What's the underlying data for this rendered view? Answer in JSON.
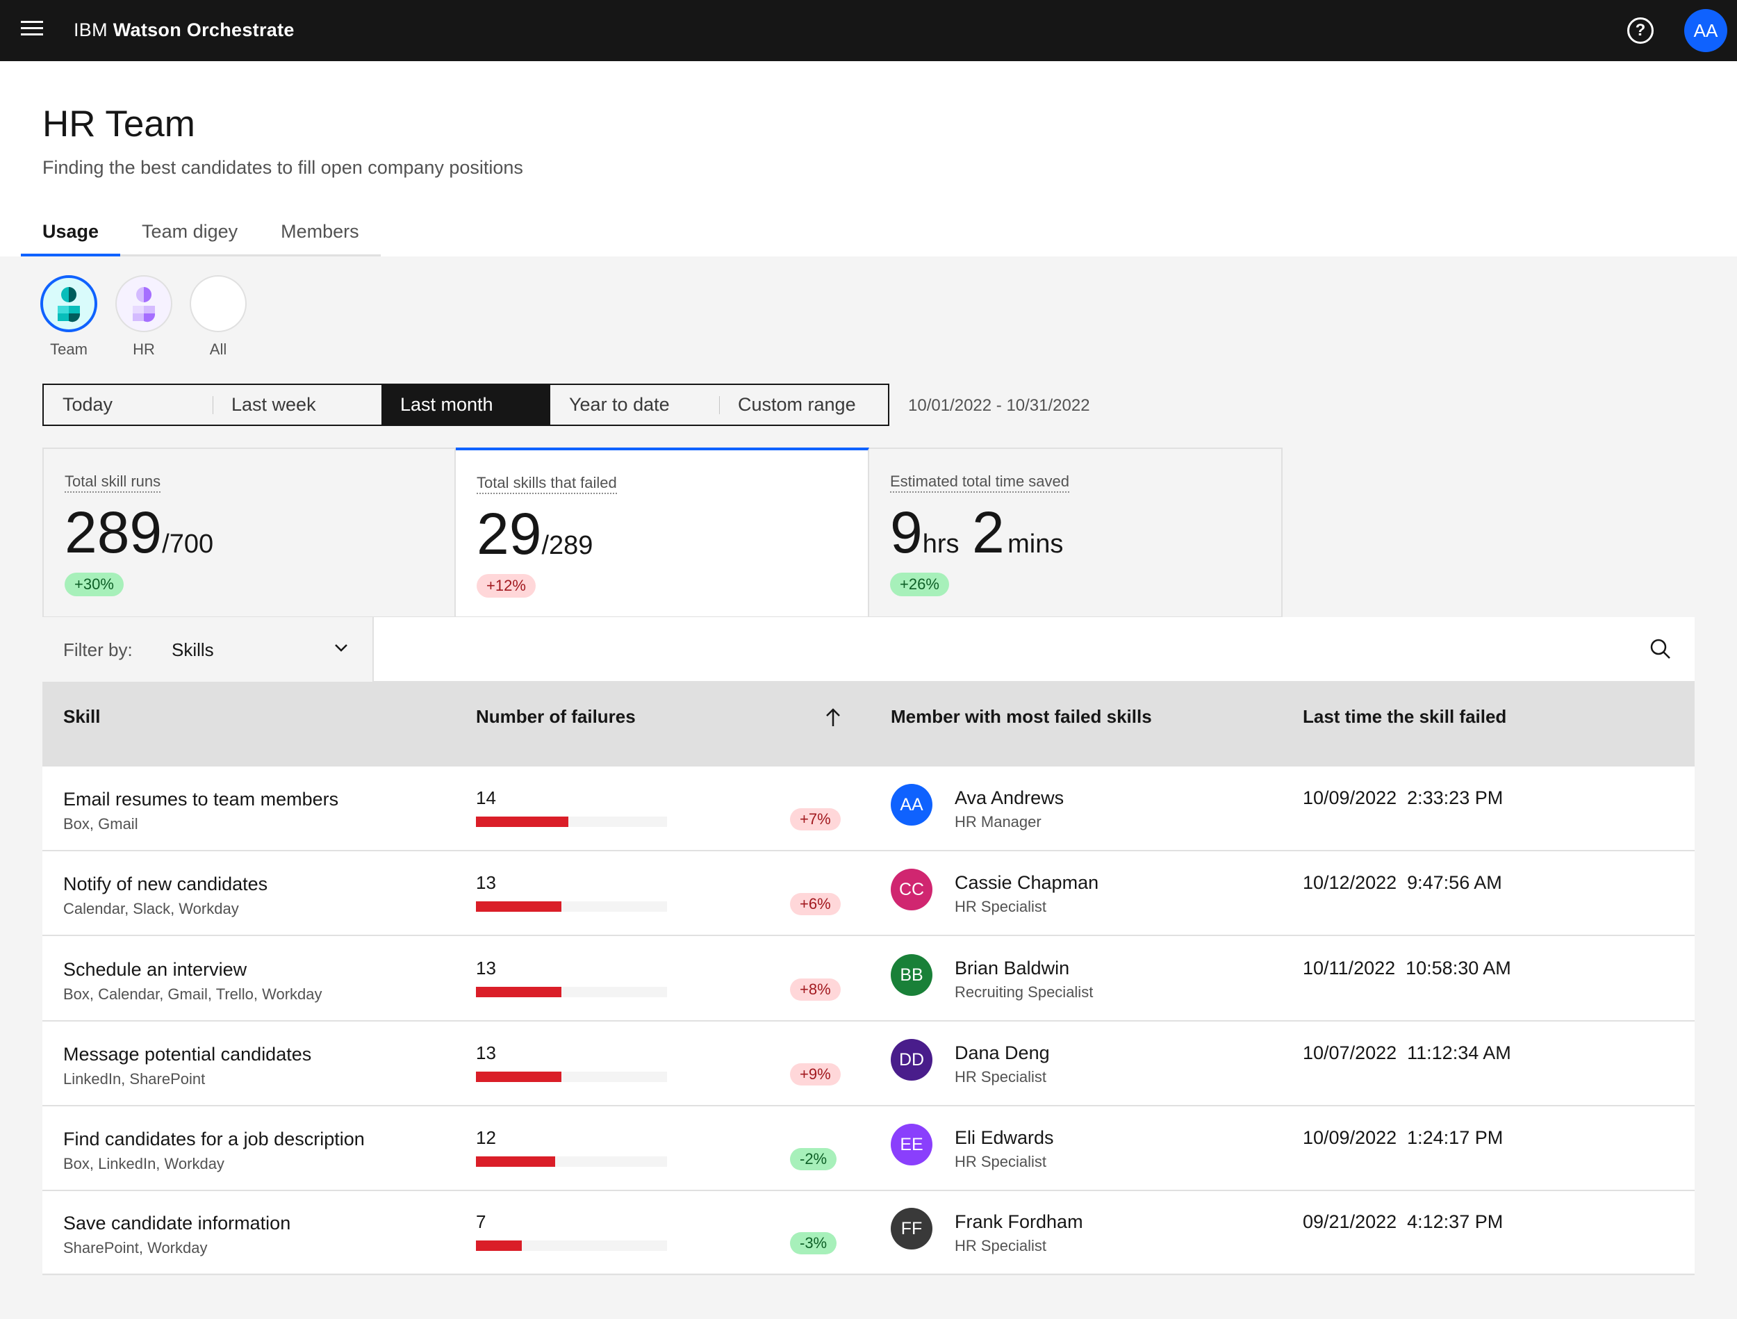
{
  "header": {
    "brand_prefix": "IBM",
    "brand_name": "Watson Orchestrate",
    "help_glyph": "?",
    "user_initials": "AA"
  },
  "page": {
    "title": "HR Team",
    "subtitle": "Finding the best candidates to fill open company positions"
  },
  "tabs": [
    {
      "label": "Usage",
      "active": true
    },
    {
      "label": "Team digey",
      "active": false
    },
    {
      "label": "Members",
      "active": false
    }
  ],
  "segments": [
    {
      "label": "Team",
      "active": true
    },
    {
      "label": "HR",
      "active": false
    },
    {
      "label": "All",
      "active": false
    }
  ],
  "date_switcher": {
    "options": [
      "Today",
      "Last week",
      "Last month",
      "Year to date",
      "Custom range"
    ],
    "selected": "Last month",
    "range_text": "10/01/2022 - 10/31/2022"
  },
  "kpis": [
    {
      "label": "Total skill runs",
      "value": "289",
      "suffix": "/700",
      "change": "+30%",
      "trend": "positive"
    },
    {
      "label": "Total skills that failed",
      "value": "29",
      "suffix": "/289",
      "change": "+12%",
      "trend": "negative"
    },
    {
      "label": "Estimated total time saved",
      "value": "9",
      "value_unit": "hrs",
      "value2": "2",
      "value2_unit": "mins",
      "change": "+26%",
      "trend": "positive"
    }
  ],
  "filter": {
    "label": "Filter by:",
    "value": "Skills"
  },
  "table": {
    "columns": [
      "Skill",
      "Number of failures",
      "Member with most failed skills",
      "Last time the skill failed"
    ],
    "sort_icon": "arrow-up-icon",
    "max_failures": 29,
    "rows": [
      {
        "skill": "Email resumes to team members",
        "apps": "Box, Gmail",
        "failures": 14,
        "change": "+7%",
        "trend": "negative",
        "member_initials": "AA",
        "member_name": "Ava Andrews",
        "member_role": "HR Manager",
        "member_color": "#0f62fe",
        "last_failed": "10/09/2022  2:33:23 PM"
      },
      {
        "skill": "Notify of new candidates",
        "apps": "Calendar, Slack, Workday",
        "failures": 13,
        "change": "+6%",
        "trend": "negative",
        "member_initials": "CC",
        "member_name": "Cassie Chapman",
        "member_role": "HR Specialist",
        "member_color": "#d02670",
        "last_failed": "10/12/2022  9:47:56 AM"
      },
      {
        "skill": "Schedule an interview",
        "apps": "Box, Calendar, Gmail, Trello, Workday",
        "failures": 13,
        "change": "+8%",
        "trend": "negative",
        "member_initials": "BB",
        "member_name": "Brian Baldwin",
        "member_role": "Recruiting Specialist",
        "member_color": "#198038",
        "last_failed": "10/11/2022  10:58:30 AM"
      },
      {
        "skill": "Message potential candidates",
        "apps": "LinkedIn, SharePoint",
        "failures": 13,
        "change": "+9%",
        "trend": "negative",
        "member_initials": "DD",
        "member_name": "Dana Deng",
        "member_role": "HR Specialist",
        "member_color": "#491d8b",
        "last_failed": "10/07/2022  11:12:34 AM"
      },
      {
        "skill": "Find candidates for a job description",
        "apps": "Box, LinkedIn, Workday",
        "failures": 12,
        "change": "-2%",
        "trend": "positive",
        "member_initials": "EE",
        "member_name": "Eli Edwards",
        "member_role": "HR Specialist",
        "member_color": "#8a3ffc",
        "last_failed": "10/09/2022  1:24:17 PM"
      },
      {
        "skill": "Save candidate information",
        "apps": "SharePoint, Workday",
        "failures": 7,
        "change": "-3%",
        "trend": "positive",
        "member_initials": "FF",
        "member_name": "Frank Fordham",
        "member_role": "HR Specialist",
        "member_color": "#393939",
        "last_failed": "09/21/2022  4:12:37 PM"
      }
    ]
  }
}
